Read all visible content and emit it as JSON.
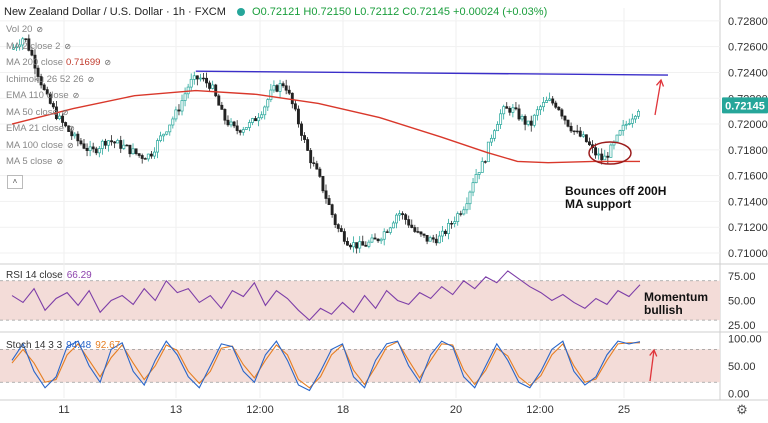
{
  "header": {
    "title": "New Zealand Dollar / U.S. Dollar · 1h · FXCM",
    "ohlc": "O0.72121 H0.72150 L0.72112 C0.72145 +0.00024 (+0.03%)"
  },
  "indicators": [
    {
      "label": "Vol 20",
      "value": ""
    },
    {
      "label": "MA 2 close 2",
      "value": ""
    },
    {
      "label": "MA 200 close",
      "value": "0.71699"
    },
    {
      "label": "Ichimoku 26 52 26",
      "value": ""
    },
    {
      "label": "EMA 110 close",
      "value": ""
    },
    {
      "label": "MA 50 close",
      "value": ""
    },
    {
      "label": "EMA 21 close",
      "value": ""
    },
    {
      "label": "MA 100 close",
      "value": ""
    },
    {
      "label": "MA 5 close",
      "value": ""
    }
  ],
  "price_badge": "0.72145",
  "annotations": {
    "support": "Bounces off 200H\nMA support",
    "momentum": "Momentum\nbullish"
  },
  "rsi_label": {
    "name": "RSI 14 close",
    "value": "66.29"
  },
  "stoch_label": {
    "name": "Stoch 14 3 3",
    "k": "94.48",
    "d": "92.67"
  },
  "colors": {
    "up": "#26a69a",
    "down": "#222222",
    "ma200": "#d9382b",
    "resistance": "#3b2fc9",
    "rsi": "#7e3fa8",
    "stoch_k": "#2a66c9",
    "stoch_d": "#e67e22",
    "band": "#f3dcd8",
    "annot_arrow": "#e0343a"
  },
  "chart_data": [
    {
      "type": "candlestick",
      "x_ticks": [
        "11",
        "13",
        "12:00",
        "18",
        "20",
        "12:00",
        "25"
      ],
      "y_ticks": [
        "0.72800",
        "0.72600",
        "0.72400",
        "0.72200",
        "0.72000",
        "0.71800",
        "0.71600",
        "0.71400",
        "0.71200",
        "0.71000"
      ],
      "ylim": [
        0.7093,
        0.729
      ],
      "close_path": [
        [
          0,
          0.7258
        ],
        [
          8,
          0.7268
        ],
        [
          14,
          0.725
        ],
        [
          22,
          0.7222
        ],
        [
          30,
          0.7205
        ],
        [
          40,
          0.719
        ],
        [
          52,
          0.7178
        ],
        [
          62,
          0.7188
        ],
        [
          74,
          0.7182
        ],
        [
          84,
          0.7175
        ],
        [
          90,
          0.7176
        ],
        [
          100,
          0.7195
        ],
        [
          108,
          0.721
        ],
        [
          116,
          0.7232
        ],
        [
          122,
          0.7236
        ],
        [
          130,
          0.723
        ],
        [
          138,
          0.7205
        ],
        [
          146,
          0.7195
        ],
        [
          156,
          0.72
        ],
        [
          164,
          0.7212
        ],
        [
          170,
          0.7226
        ],
        [
          178,
          0.7232
        ],
        [
          186,
          0.7205
        ],
        [
          194,
          0.7175
        ],
        [
          200,
          0.716
        ],
        [
          206,
          0.714
        ],
        [
          212,
          0.712
        ],
        [
          220,
          0.7108
        ],
        [
          228,
          0.7105
        ],
        [
          238,
          0.711
        ],
        [
          246,
          0.712
        ],
        [
          252,
          0.7132
        ],
        [
          258,
          0.7125
        ],
        [
          264,
          0.7115
        ],
        [
          272,
          0.711
        ],
        [
          280,
          0.7112
        ],
        [
          288,
          0.7125
        ],
        [
          296,
          0.7138
        ],
        [
          302,
          0.716
        ],
        [
          308,
          0.717
        ],
        [
          314,
          0.7195
        ],
        [
          320,
          0.721
        ],
        [
          326,
          0.7212
        ],
        [
          332,
          0.7205
        ],
        [
          338,
          0.7198
        ],
        [
          344,
          0.7212
        ],
        [
          350,
          0.7218
        ],
        [
          356,
          0.7215
        ],
        [
          362,
          0.7202
        ],
        [
          368,
          0.7193
        ],
        [
          374,
          0.7188
        ],
        [
          380,
          0.7178
        ],
        [
          386,
          0.7172
        ],
        [
          392,
          0.7182
        ],
        [
          398,
          0.7195
        ],
        [
          404,
          0.7205
        ],
        [
          410,
          0.7214
        ]
      ],
      "ma200": [
        [
          0,
          0.72
        ],
        [
          40,
          0.7212
        ],
        [
          80,
          0.7222
        ],
        [
          120,
          0.7226
        ],
        [
          160,
          0.7223
        ],
        [
          200,
          0.7216
        ],
        [
          240,
          0.7205
        ],
        [
          280,
          0.719
        ],
        [
          310,
          0.7178
        ],
        [
          330,
          0.7171
        ],
        [
          350,
          0.717
        ],
        [
          380,
          0.7171
        ],
        [
          410,
          0.7171
        ]
      ],
      "resistance": [
        [
          120,
          0.7241
        ],
        [
          410,
          0.7238
        ]
      ],
      "last_price": 0.72145
    },
    {
      "type": "line",
      "name": "RSI 14 close",
      "y_ticks": [
        "75.00",
        "50.00",
        "25.00"
      ],
      "ylim": [
        20,
        85
      ],
      "band": [
        30,
        70
      ],
      "values": [
        55,
        48,
        62,
        40,
        52,
        58,
        45,
        60,
        38,
        50,
        55,
        46,
        62,
        50,
        70,
        58,
        62,
        48,
        55,
        42,
        60,
        54,
        68,
        45,
        60,
        52,
        40,
        30,
        42,
        36,
        48,
        38,
        55,
        42,
        60,
        50,
        46,
        58,
        52,
        64,
        56,
        70,
        62,
        74,
        68,
        80,
        72,
        64,
        58,
        50,
        56,
        48,
        42,
        52,
        46,
        60,
        54,
        66
      ]
    },
    {
      "type": "line",
      "name": "Stoch 14 3 3",
      "y_ticks": [
        "100.00",
        "50.00",
        "0.00"
      ],
      "ylim": [
        -5,
        108
      ],
      "band": [
        20,
        80
      ],
      "k": [
        60,
        90,
        40,
        10,
        30,
        85,
        95,
        50,
        20,
        80,
        92,
        40,
        15,
        60,
        95,
        70,
        30,
        10,
        50,
        90,
        85,
        40,
        20,
        70,
        95,
        60,
        15,
        5,
        40,
        80,
        90,
        30,
        10,
        60,
        90,
        95,
        50,
        20,
        70,
        95,
        85,
        30,
        10,
        50,
        90,
        60,
        20,
        10,
        40,
        80,
        95,
        40,
        15,
        30,
        70,
        95,
        90,
        94
      ],
      "d": [
        55,
        80,
        55,
        20,
        25,
        70,
        90,
        60,
        30,
        65,
        88,
        55,
        25,
        50,
        88,
        78,
        40,
        18,
        40,
        82,
        86,
        52,
        28,
        60,
        88,
        70,
        25,
        10,
        30,
        70,
        88,
        42,
        16,
        48,
        84,
        94,
        60,
        28,
        60,
        90,
        88,
        42,
        16,
        42,
        82,
        68,
        30,
        14,
        32,
        70,
        90,
        50,
        20,
        26,
        60,
        90,
        92,
        92
      ]
    }
  ]
}
